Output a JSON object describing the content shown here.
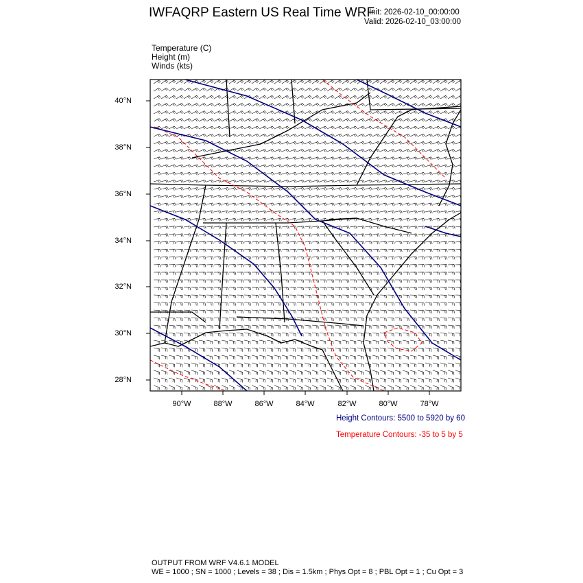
{
  "header": {
    "title": "IWFAQRP Eastern US Real Time WRF",
    "init": "Init: 2026-02-10_00:00:00",
    "valid": "Valid: 2026-02-10_03:00:00"
  },
  "fields": [
    "Temperature   (C)",
    "Height   (m)",
    "Winds   (kts)"
  ],
  "map": {
    "lat_ticks": [
      "40°N",
      "38°N",
      "36°N",
      "34°N",
      "32°N",
      "30°N",
      "28°N"
    ],
    "lon_ticks": [
      "90°W",
      "88°W",
      "86°W",
      "84°W",
      "82°W",
      "80°W",
      "78°W"
    ],
    "lat_range": [
      27.5,
      40.9
    ],
    "lon_range": [
      -91.5,
      -76.6
    ],
    "colors": {
      "height": "#000080",
      "temperature": "#ff0000",
      "borders": "#000000",
      "barbs": "#000000"
    }
  },
  "legend": {
    "height": "Height Contours: 5500 to 5920 by 60",
    "temperature": "Temperature Contours: -35 to 5 by 5"
  },
  "footer": {
    "line1": "OUTPUT FROM WRF V4.6.1 MODEL",
    "line2": "WE = 1000 ; SN = 1000 ; Levels = 38 ; Dis = 1.5km ; Phys Opt = 8 ; PBL Opt = 1 ; Cu Opt = 3"
  }
}
